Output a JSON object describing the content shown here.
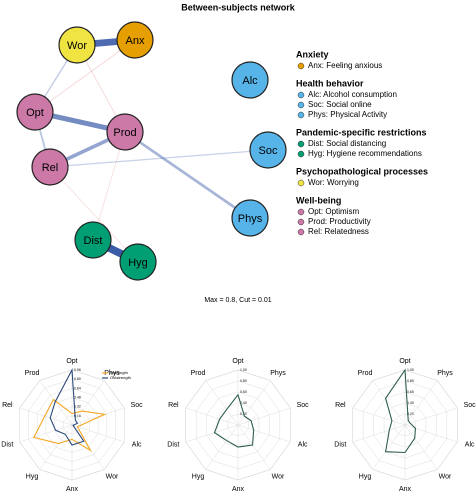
{
  "network": {
    "title": "Between-subjects network",
    "nodes": [
      {
        "label": "Wor",
        "color": "#f0e442"
      },
      {
        "label": "Anx",
        "color": "#e69f00"
      },
      {
        "label": "Alc",
        "color": "#56b4e9"
      },
      {
        "label": "Opt",
        "color": "#cc79a7"
      },
      {
        "label": "Prod",
        "color": "#cc79a7"
      },
      {
        "label": "Rel",
        "color": "#cc79a7"
      },
      {
        "label": "Soc",
        "color": "#56b4e9"
      },
      {
        "label": "Phys",
        "color": "#56b4e9"
      },
      {
        "label": "Dist",
        "color": "#009e73"
      },
      {
        "label": "Hyg",
        "color": "#009e73"
      }
    ],
    "edges": [
      {
        "from": "Wor",
        "to": "Anx",
        "weight": 0.7
      },
      {
        "from": "Opt",
        "to": "Prod",
        "weight": 0.5
      },
      {
        "from": "Dist",
        "to": "Hyg",
        "weight": 0.8
      },
      {
        "from": "Rel",
        "to": "Prod",
        "weight": 0.35
      },
      {
        "from": "Prod",
        "to": "Phys",
        "weight": 0.25
      },
      {
        "from": "Opt",
        "to": "Rel",
        "weight": 0.15
      },
      {
        "from": "Opt",
        "to": "Wor",
        "weight": 0.1
      },
      {
        "from": "Rel",
        "to": "Soc",
        "weight": 0.08
      },
      {
        "from": "Opt",
        "to": "Anx",
        "weight": -0.06
      },
      {
        "from": "Wor",
        "to": "Prod",
        "weight": -0.05
      },
      {
        "from": "Prod",
        "to": "Dist",
        "weight": -0.04
      },
      {
        "from": "Rel",
        "to": "Hyg",
        "weight": -0.04
      }
    ],
    "note": "Max = 0.8, Cut = 0.01",
    "legend": [
      {
        "group": "Anxiety",
        "items": [
          {
            "text": "Anx: Feeling anxious",
            "color": "#e69f00"
          }
        ]
      },
      {
        "group": "Health behavior",
        "items": [
          {
            "text": "Alc: Alcohol consumption",
            "color": "#56b4e9"
          },
          {
            "text": "Soc: Social online",
            "color": "#56b4e9"
          },
          {
            "text": "Phys: Physical Activity",
            "color": "#56b4e9"
          }
        ]
      },
      {
        "group": "Pandemic-specific restrictions",
        "items": [
          {
            "text": "Dist: Social distancing",
            "color": "#009e73"
          },
          {
            "text": "Hyg: Hygiene recommendations",
            "color": "#009e73"
          }
        ]
      },
      {
        "group": "Psychopathological processes",
        "items": [
          {
            "text": "Wor: Worrying",
            "color": "#f0e442"
          }
        ]
      },
      {
        "group": "Well-being",
        "items": [
          {
            "text": "Opt: Optimism",
            "color": "#cc79a7"
          },
          {
            "text": "Prod: Productivity",
            "color": "#cc79a7"
          },
          {
            "text": "Rel: Relatedness",
            "color": "#cc79a7"
          }
        ]
      }
    ]
  },
  "chart_data": [
    {
      "type": "radar",
      "categories": [
        "Opt",
        "Phys",
        "Soc",
        "Alc",
        "Wor",
        "Anx",
        "Hyg",
        "Dist",
        "Rel",
        "Prod"
      ],
      "rlim": [
        0,
        0.96
      ],
      "rticks": [
        0.16,
        0.32,
        0.48,
        0.64,
        {
          "value": 0.8,
          "label": "0.80"
        },
        0.96
      ],
      "series": [
        {
          "name": "Instrength",
          "color": "#f5a623",
          "values": [
            0.2,
            0.3,
            0.6,
            0.1,
            0.55,
            0.25,
            0.4,
            0.7,
            0.5,
            0.55
          ]
        },
        {
          "name": "Outstrength",
          "color": "#2c4a7a",
          "values": [
            0.96,
            0.1,
            0.1,
            0.02,
            0.35,
            0.35,
            0.2,
            0.3,
            0.4,
            0.5
          ]
        }
      ]
    },
    {
      "type": "radar",
      "categories": [
        "Opt",
        "Phys",
        "Soc",
        "Alc",
        "Wor",
        "Anx",
        "Hyg",
        "Dist",
        "Rel",
        "Prod"
      ],
      "rlim": [
        0,
        1
      ],
      "rticks": [
        {
          "value": 0.2,
          "label": "0.20"
        },
        {
          "value": 0.4,
          "label": "0.40"
        },
        {
          "value": 0.6,
          "label": "0.60"
        },
        {
          "value": 0.8,
          "label": "0.80"
        },
        {
          "value": 1,
          "label": "1.00"
        }
      ],
      "series": [
        {
          "color": "#2f5d50",
          "values": [
            0.55,
            0.2,
            0.25,
            0.3,
            0.45,
            0.4,
            0.35,
            0.45,
            0.35,
            0.35
          ]
        }
      ]
    },
    {
      "type": "radar",
      "categories": [
        "Opt",
        "Phys",
        "Soc",
        "Alc",
        "Wor",
        "Anx",
        "Hyg",
        "Dist",
        "Rel",
        "Prod"
      ],
      "rlim": [
        0,
        1
      ],
      "rticks": [
        {
          "value": 0.2,
          "label": "0.20"
        },
        {
          "value": 0.4,
          "label": "0.40"
        },
        {
          "value": 0.6,
          "label": "0.60"
        },
        {
          "value": 0.8,
          "label": "0.80"
        },
        {
          "value": 1,
          "label": "1.00"
        }
      ],
      "series": [
        {
          "color": "#2f5d50",
          "values": [
            1,
            0.1,
            0.1,
            0.2,
            0.3,
            0.5,
            0.6,
            0.3,
            0.25,
            0.6
          ]
        }
      ]
    }
  ]
}
